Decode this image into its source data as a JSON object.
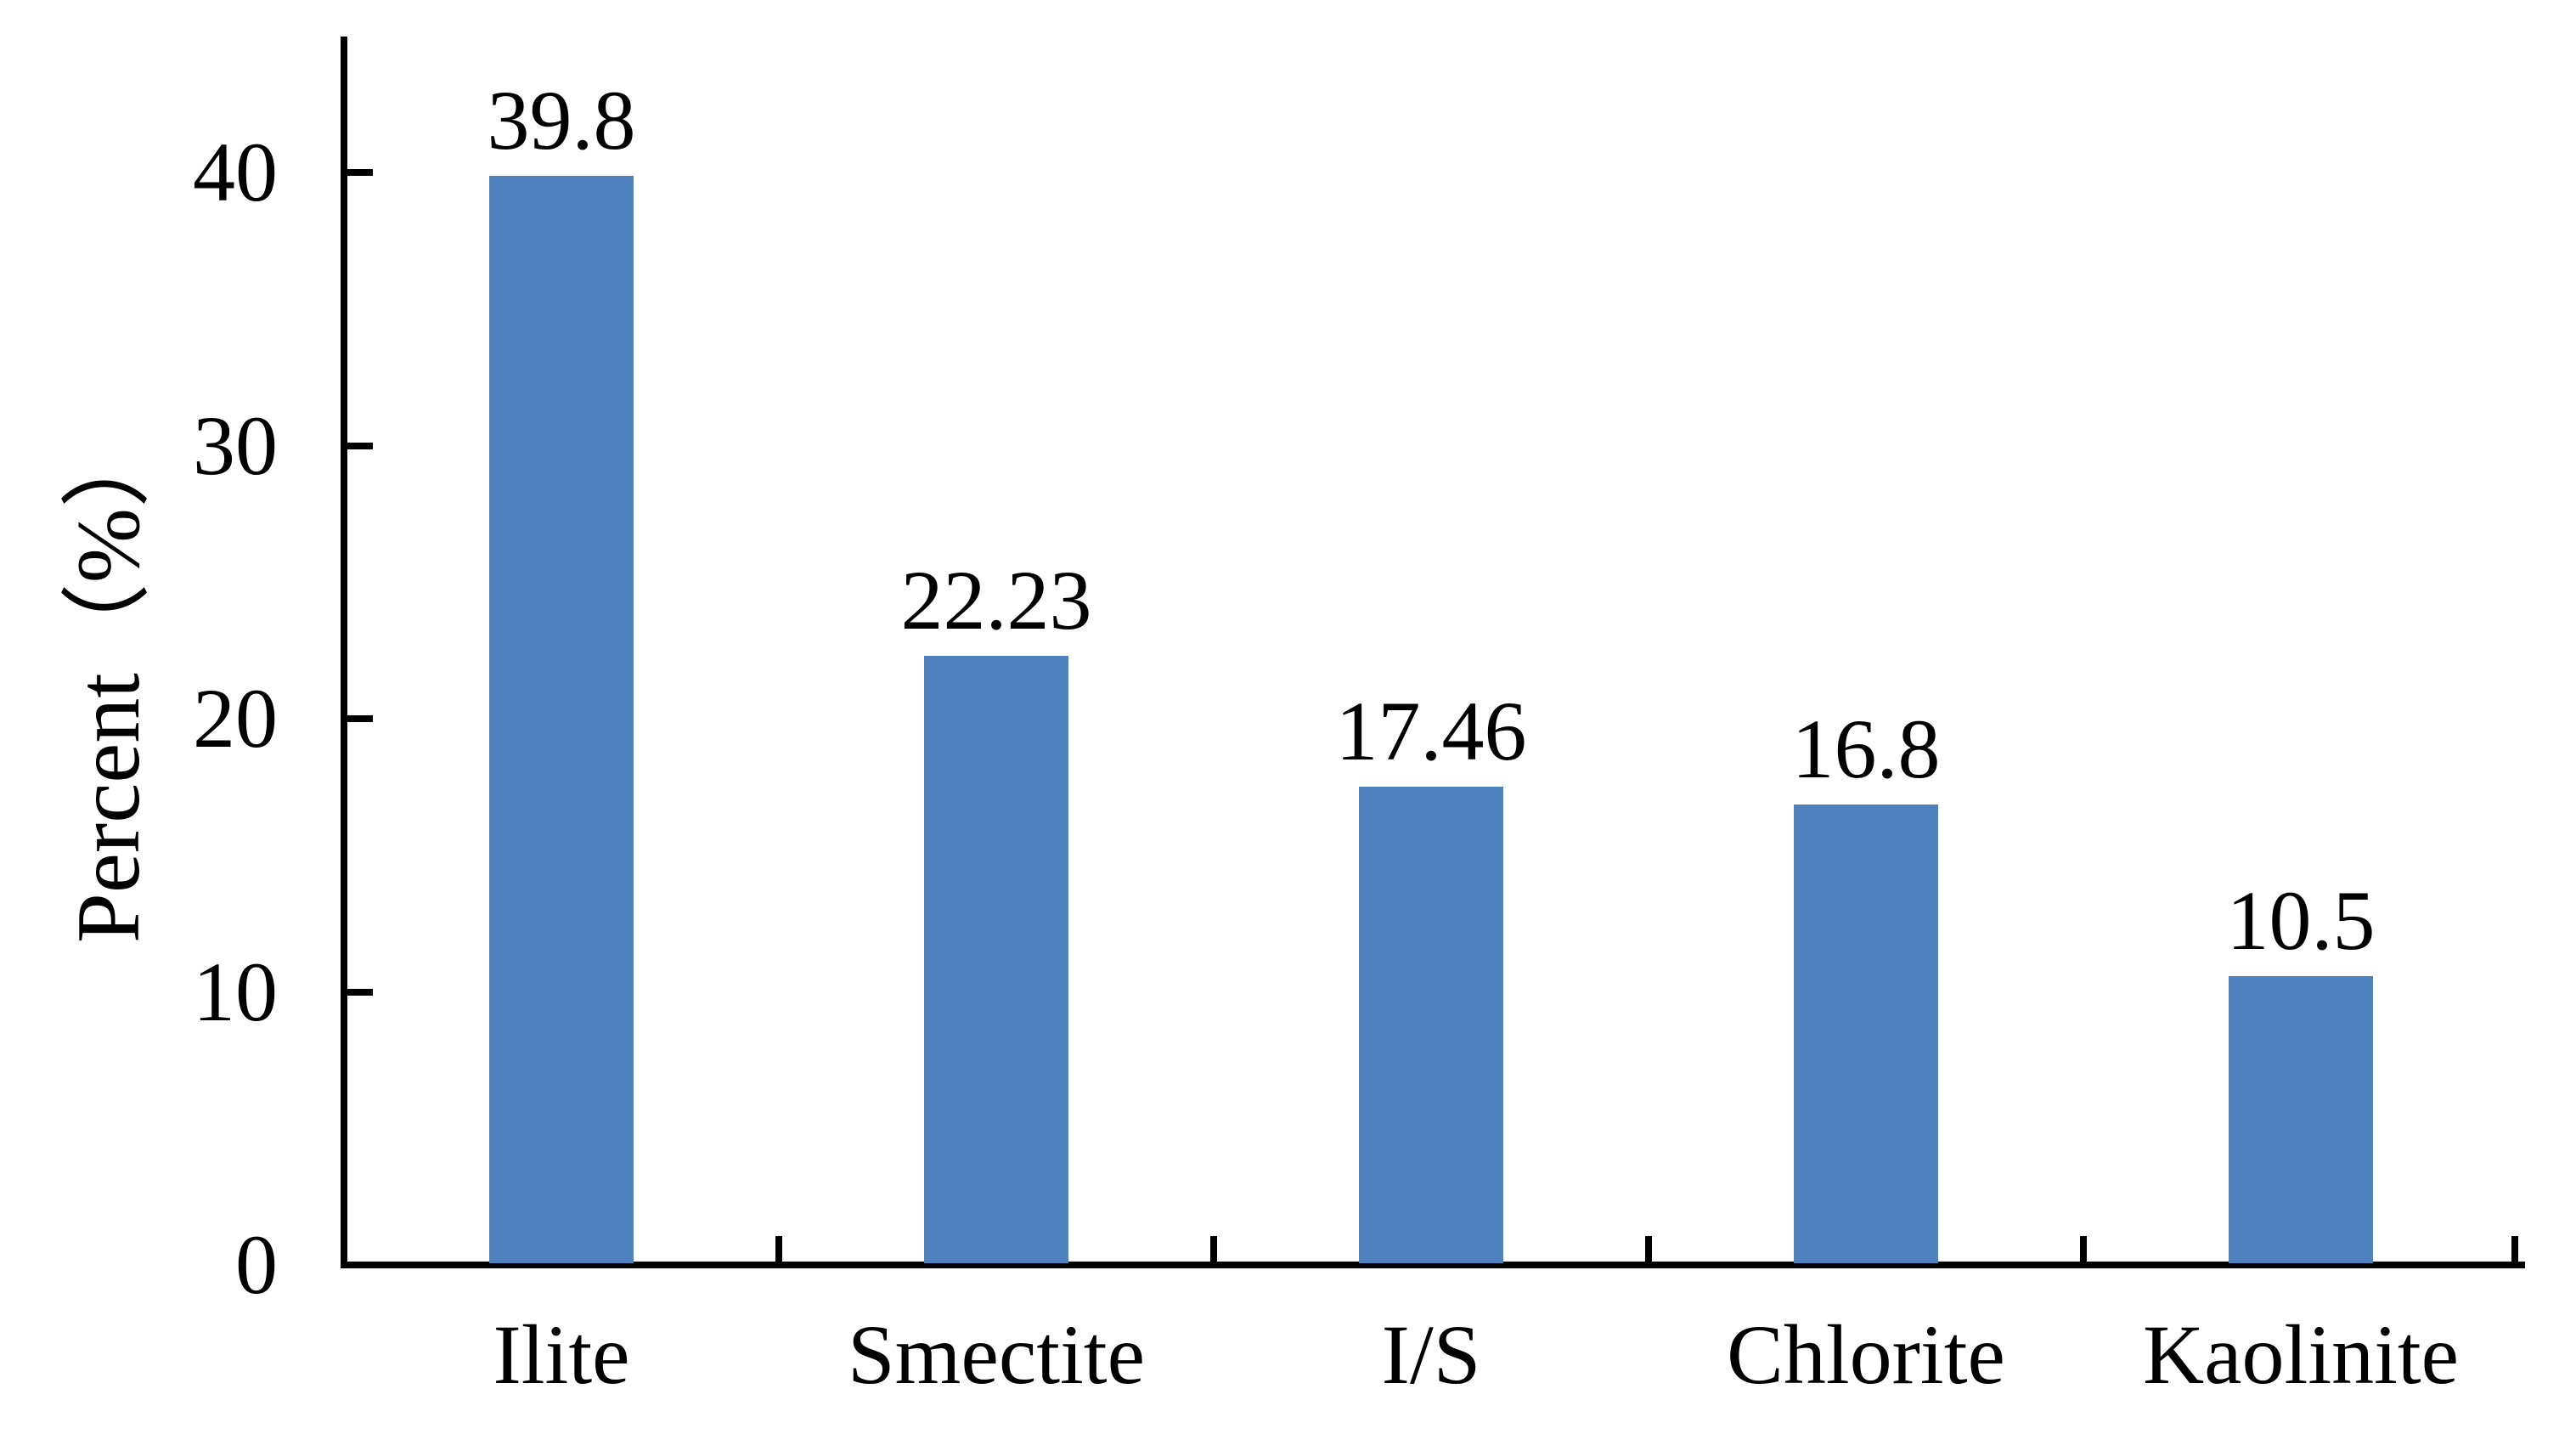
{
  "chart_data": {
    "type": "bar",
    "categories": [
      "Ilite",
      "Smectite",
      "I/S",
      "Chlorite",
      "Kaolinite"
    ],
    "values": [
      39.8,
      22.23,
      17.46,
      16.8,
      10.5
    ],
    "data_labels": [
      "39.8",
      "22.23",
      "17.46",
      "16.8",
      "10.5"
    ],
    "title": "",
    "xlabel": "",
    "ylabel": "Percent（%）",
    "ylim": [
      0,
      45
    ],
    "yticks": [
      0,
      10,
      20,
      30,
      40
    ],
    "grid": false,
    "legend": false,
    "bar_color": "#4E81BD",
    "axis_color": "#000000",
    "text_color": "#000000"
  }
}
